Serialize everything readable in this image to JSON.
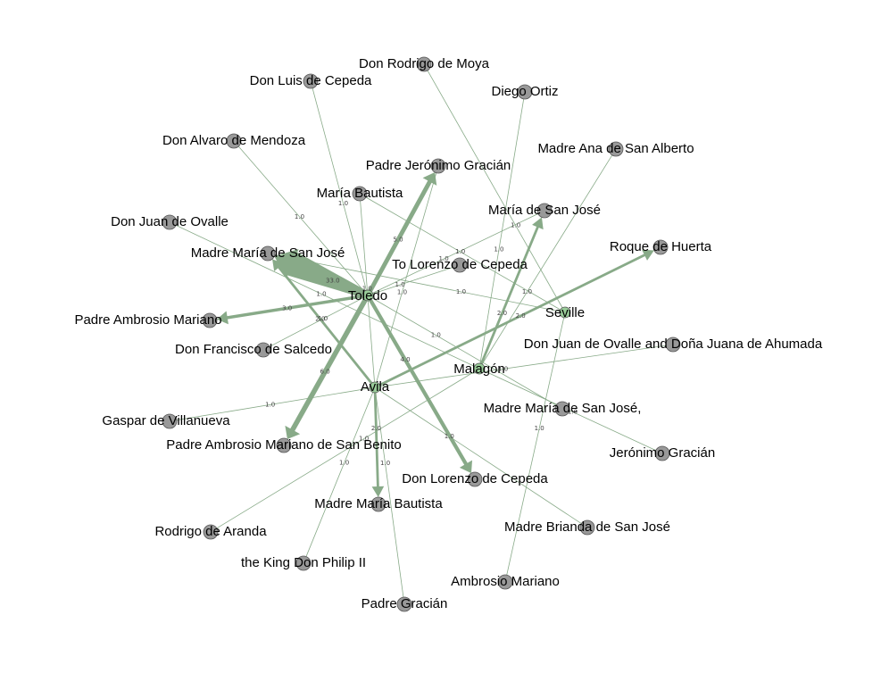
{
  "graph": {
    "colors": {
      "source_node": "#99cc99",
      "target_node": "#999999",
      "node_stroke": "#555555",
      "edge": "#88aa88"
    },
    "nodes": [
      {
        "id": "toledo",
        "label": "Toledo",
        "role": "source"
      },
      {
        "id": "avila",
        "label": "Avila",
        "role": "source"
      },
      {
        "id": "malagon",
        "label": "Malagón",
        "role": "source"
      },
      {
        "id": "seville",
        "label": "Seville",
        "role": "source"
      },
      {
        "id": "rodrigo_moya",
        "label": "Don Rodrigo de Moya",
        "role": "target"
      },
      {
        "id": "luis_cepeda",
        "label": "Don Luis de Cepeda",
        "role": "target"
      },
      {
        "id": "diego_ortiz",
        "label": "Diego Ortiz",
        "role": "target"
      },
      {
        "id": "alvaro_mendoza",
        "label": "Don Alvaro de Mendoza",
        "role": "target"
      },
      {
        "id": "madre_ana",
        "label": "Madre Ana de San Alberto",
        "role": "target"
      },
      {
        "id": "padre_jeronimo",
        "label": "Padre Jerónimo Gracián",
        "role": "target"
      },
      {
        "id": "maria_bautista",
        "label": "María Bautista",
        "role": "target"
      },
      {
        "id": "maria_san_jose",
        "label": "María de San José",
        "role": "target"
      },
      {
        "id": "juan_ovalle",
        "label": "Don Juan de Ovalle",
        "role": "target"
      },
      {
        "id": "roque_huerta",
        "label": "Roque de Huerta",
        "role": "target"
      },
      {
        "id": "madre_maria_sj",
        "label": "Madre María de San José",
        "role": "target"
      },
      {
        "id": "to_lorenzo",
        "label": "To Lorenzo de Cepeda",
        "role": "target"
      },
      {
        "id": "padre_ambrosio",
        "label": "Padre Ambrosio Mariano",
        "role": "target"
      },
      {
        "id": "juan_ovalle_juana",
        "label": "Don Juan de Ovalle and Doña Juana de Ahumada",
        "role": "target"
      },
      {
        "id": "francisco_salcedo",
        "label": "Don Francisco de Salcedo",
        "role": "target"
      },
      {
        "id": "madre_maria_sj2",
        "label": "Madre María de San José,",
        "role": "target"
      },
      {
        "id": "gaspar",
        "label": "Gaspar de Villanueva",
        "role": "target"
      },
      {
        "id": "jeronimo_gracian",
        "label": "Jerónimo Gracián",
        "role": "target"
      },
      {
        "id": "padre_ambrosio_sb",
        "label": "Padre Ambrosio Mariano de San Benito",
        "role": "target"
      },
      {
        "id": "don_lorenzo",
        "label": "Don Lorenzo de Cepeda",
        "role": "target"
      },
      {
        "id": "madre_maria_bautista",
        "label": "Madre María Bautista",
        "role": "target"
      },
      {
        "id": "madre_brianda",
        "label": "Madre Brianda de San José",
        "role": "target"
      },
      {
        "id": "rodrigo_aranda",
        "label": "Rodrigo de Aranda",
        "role": "target"
      },
      {
        "id": "king_philip",
        "label": "the King Don Philip II",
        "role": "target"
      },
      {
        "id": "ambrosio_mariano",
        "label": "Ambrosio Mariano",
        "role": "target"
      },
      {
        "id": "padre_gracian",
        "label": "Padre Gracián",
        "role": "target"
      }
    ],
    "edges": [
      {
        "from": "toledo",
        "to": "madre_maria_sj",
        "weight": 33.0,
        "label": "33.0"
      },
      {
        "from": "toledo",
        "to": "padre_jeronimo",
        "weight": 5.0,
        "label": "5.0"
      },
      {
        "from": "toledo",
        "to": "padre_ambrosio_sb",
        "weight": 6.0,
        "label": "6.0"
      },
      {
        "from": "toledo",
        "to": "don_lorenzo",
        "weight": 4.0,
        "label": "4.0"
      },
      {
        "from": "toledo",
        "to": "maria_san_jose",
        "weight": 1.0,
        "label": "1.0"
      },
      {
        "from": "toledo",
        "to": "padre_ambrosio",
        "weight": 3.0,
        "label": "3.0"
      },
      {
        "from": "toledo",
        "to": "to_lorenzo",
        "weight": 1.0,
        "label": "1.0"
      },
      {
        "from": "toledo",
        "to": "luis_cepeda",
        "weight": 1.0,
        "label": "1.0"
      },
      {
        "from": "toledo",
        "to": "alvaro_mendoza",
        "weight": 1.0,
        "label": "1.0"
      },
      {
        "from": "toledo",
        "to": "madre_maria_sj2",
        "weight": 1.0,
        "label": "1.0"
      },
      {
        "from": "toledo",
        "to": "francisco_salcedo",
        "weight": 1.0,
        "label": "1.0"
      },
      {
        "from": "avila",
        "to": "madre_maria_sj",
        "weight": 2.0,
        "label": "2.0"
      },
      {
        "from": "avila",
        "to": "padre_gracian",
        "weight": 1.0,
        "label": "1.0"
      },
      {
        "from": "avila",
        "to": "juan_ovalle_juana",
        "weight": 1.0,
        "label": "1.0"
      },
      {
        "from": "avila",
        "to": "roque_huerta",
        "weight": 2.0,
        "label": "2.0"
      },
      {
        "from": "avila",
        "to": "madre_maria_bautista",
        "weight": 2.0,
        "label": "2.0"
      },
      {
        "from": "avila",
        "to": "king_philip",
        "weight": 1.0,
        "label": "1.0"
      },
      {
        "from": "avila",
        "to": "maria_bautista",
        "weight": 1.0,
        "label": "1.0"
      },
      {
        "from": "avila",
        "to": "madre_brianda",
        "weight": 1.0,
        "label": "1.0"
      },
      {
        "from": "avila",
        "to": "padre_jeronimo",
        "weight": 1.0,
        "label": "1.0"
      },
      {
        "from": "avila",
        "to": "gaspar",
        "weight": 1.0,
        "label": "1.0"
      },
      {
        "from": "malagon",
        "to": "maria_san_jose",
        "weight": 2.0,
        "label": "2.0"
      },
      {
        "from": "malagon",
        "to": "diego_ortiz",
        "weight": 1.0,
        "label": "1.0"
      },
      {
        "from": "malagon",
        "to": "juan_ovalle",
        "weight": 1.0,
        "label": "1.0"
      },
      {
        "from": "malagon",
        "to": "madre_ana",
        "weight": 1.0,
        "label": "1.0"
      },
      {
        "from": "malagon",
        "to": "rodrigo_aranda",
        "weight": 1.0,
        "label": "1.0"
      },
      {
        "from": "malagon",
        "to": "jeronimo_gracian",
        "weight": 1.0,
        "label": "1.0"
      },
      {
        "from": "seville",
        "to": "rodrigo_moya",
        "weight": 1.0,
        "label": "1.0"
      },
      {
        "from": "seville",
        "to": "ambrosio_mariano",
        "weight": 1.0,
        "label": "1.0"
      },
      {
        "from": "seville",
        "to": "maria_bautista",
        "weight": 1.0,
        "label": "1.0"
      },
      {
        "from": "seville",
        "to": "madre_maria_sj",
        "weight": 1.0,
        "label": "1.0"
      }
    ]
  }
}
